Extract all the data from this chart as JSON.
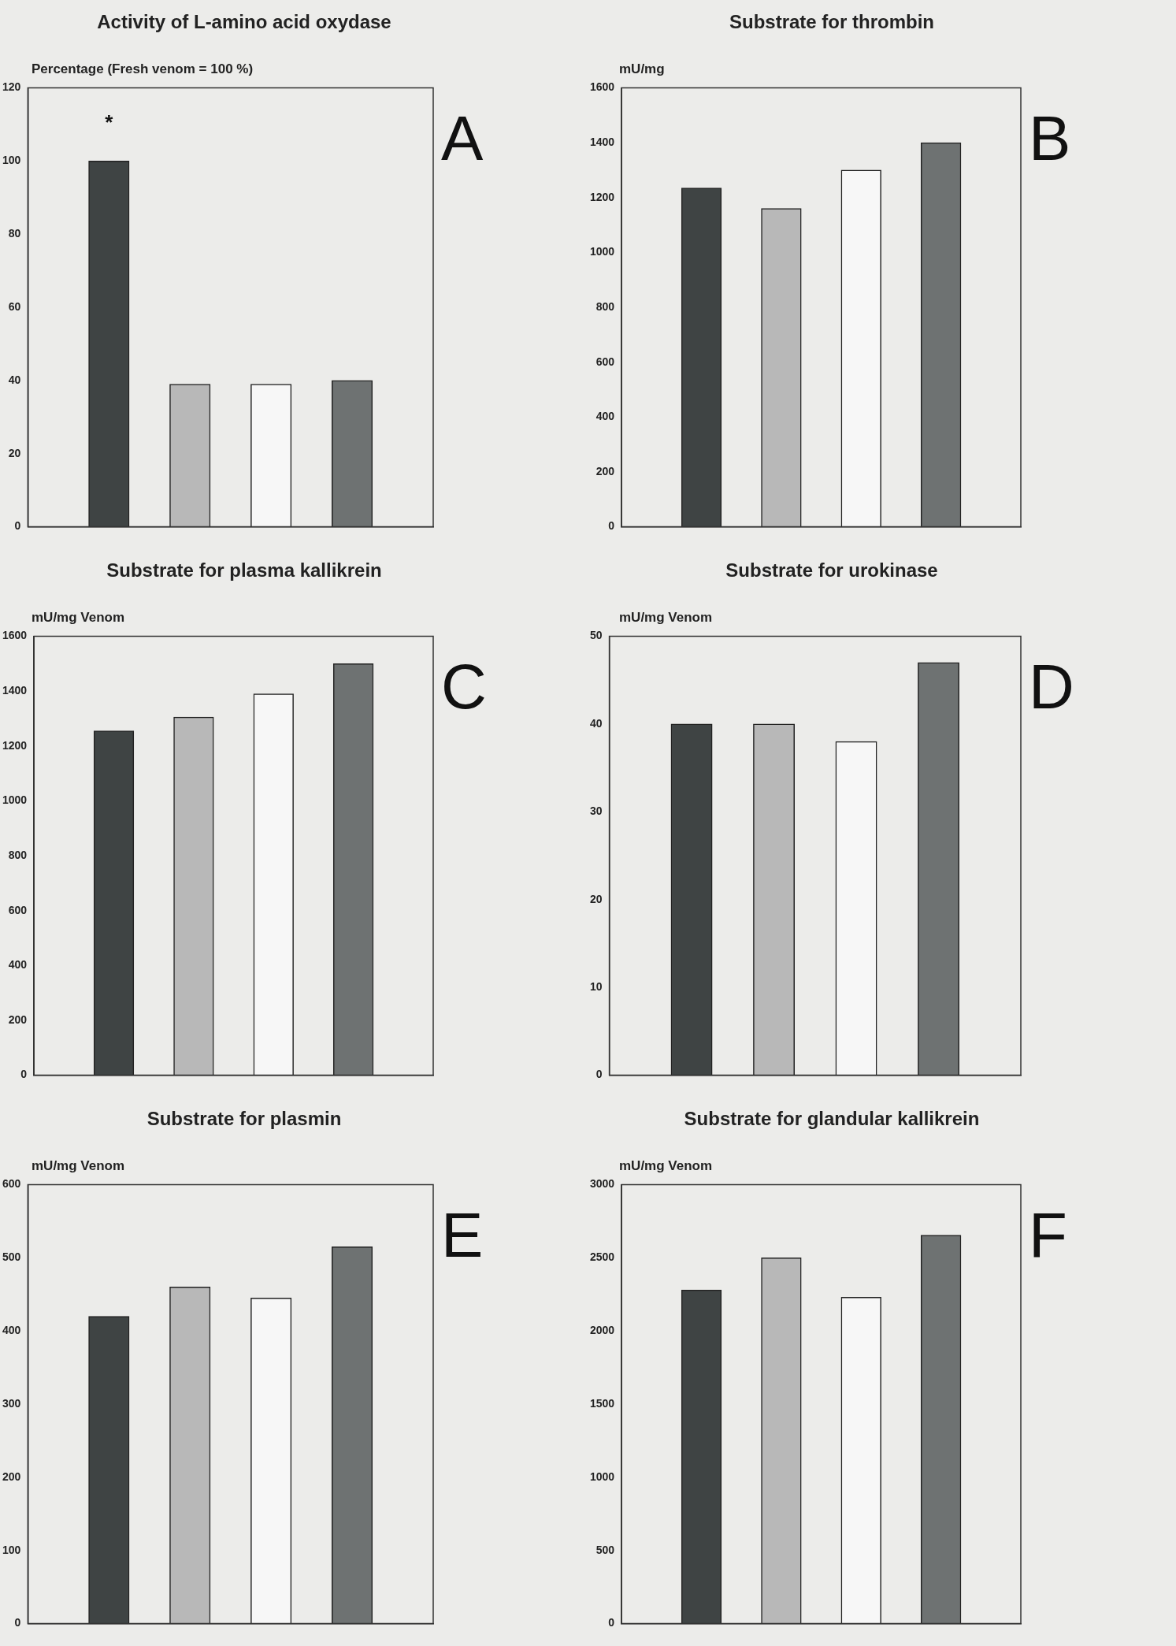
{
  "chart_data": [
    {
      "type": "bar",
      "title": "Activity of L-amino acid oxydase",
      "ylabel": "Percentage (Fresh venom = 100 %)",
      "categories": [
        null,
        null,
        null,
        null
      ],
      "values": [
        100,
        39,
        39,
        40
      ],
      "colors": [
        "#3f4444",
        "#b8b8b8",
        "#f7f7f7",
        "#6e7272"
      ],
      "value_labels": [
        "*",
        null,
        null,
        null
      ],
      "ylim": [
        0,
        120
      ],
      "yticks": [
        0,
        20,
        40,
        60,
        80,
        100,
        120
      ],
      "tick_labels": "y",
      "annotations": [
        "A"
      ]
    },
    {
      "type": "bar",
      "title": "Substrate for thrombin",
      "ylabel": "mU/mg",
      "categories": [
        null,
        null,
        null,
        null
      ],
      "values": [
        1235,
        1160,
        1300,
        1400
      ],
      "colors": [
        "#3f4444",
        "#b8b8b8",
        "#f7f7f7",
        "#6e7272"
      ],
      "ylim": [
        0,
        1600
      ],
      "yticks": [
        0,
        200,
        400,
        600,
        800,
        1000,
        1200,
        1400,
        1600
      ],
      "tick_labels": "y",
      "annotations": [
        "B"
      ]
    },
    {
      "type": "bar",
      "title": "Substrate for plasma kallikrein",
      "ylabel": "mU/mg Venom",
      "categories": [
        null,
        null,
        null,
        null
      ],
      "values": [
        1255,
        1305,
        1390,
        1500
      ],
      "colors": [
        "#3f4444",
        "#b8b8b8",
        "#f7f7f7",
        "#6e7272"
      ],
      "ylim": [
        0,
        1600
      ],
      "yticks": [
        0,
        200,
        400,
        600,
        800,
        1000,
        1200,
        1400,
        1600
      ],
      "tick_labels": "y",
      "annotations": [
        "C"
      ]
    },
    {
      "type": "bar",
      "title": "Substrate for urokinase",
      "ylabel": "mU/mg Venom",
      "categories": [
        null,
        null,
        null,
        null
      ],
      "values": [
        40,
        40,
        38,
        47
      ],
      "colors": [
        "#3f4444",
        "#b8b8b8",
        "#f7f7f7",
        "#6e7272"
      ],
      "ylim": [
        0,
        50
      ],
      "yticks": [
        0,
        10,
        20,
        30,
        40,
        50
      ],
      "tick_labels": "y",
      "annotations": [
        "D"
      ]
    },
    {
      "type": "bar",
      "title": "Substrate for plasmin",
      "ylabel": "mU/mg Venom",
      "categories": [
        null,
        null,
        null,
        null
      ],
      "values": [
        420,
        460,
        445,
        515
      ],
      "colors": [
        "#3f4444",
        "#b8b8b8",
        "#f7f7f7",
        "#6e7272"
      ],
      "ylim": [
        0,
        600
      ],
      "yticks": [
        0,
        100,
        200,
        300,
        400,
        500,
        600
      ],
      "tick_labels": "y",
      "annotations": [
        "E"
      ]
    },
    {
      "type": "bar",
      "title": "Substrate for glandular kallikrein",
      "ylabel": "mU/mg Venom",
      "categories": [
        null,
        null,
        null,
        null
      ],
      "values": [
        2280,
        2500,
        2230,
        2655
      ],
      "colors": [
        "#3f4444",
        "#b8b8b8",
        "#f7f7f7",
        "#6e7272"
      ],
      "ylim": [
        0,
        3000
      ],
      "yticks": [
        0,
        500,
        1000,
        1500,
        2000,
        2500,
        3000
      ],
      "tick_labels": "y",
      "annotations": [
        "F"
      ]
    }
  ]
}
